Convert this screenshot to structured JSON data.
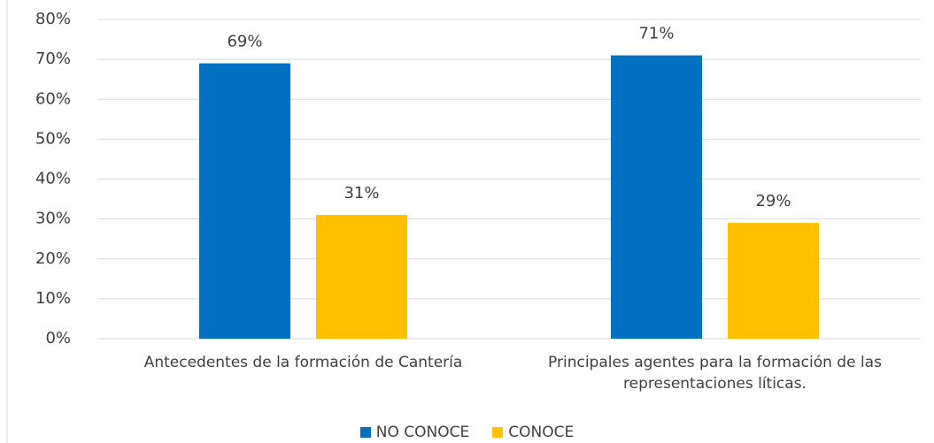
{
  "chart_data": {
    "type": "bar",
    "categories": [
      "Antecedentes de la formación de Cantería",
      "Principales agentes para la formación de las representaciones líticas."
    ],
    "series": [
      {
        "name": "NO CONOCE",
        "color": "#0070c0",
        "values": [
          69,
          71
        ],
        "value_labels": [
          "69%",
          "71%"
        ]
      },
      {
        "name": "CONOCE",
        "color": "#ffc000",
        "values": [
          31,
          29
        ],
        "value_labels": [
          "31%",
          "29%"
        ]
      }
    ],
    "ylim": [
      0,
      80
    ],
    "yticks": [
      {
        "value": 0,
        "label": "0%"
      },
      {
        "value": 10,
        "label": "10%"
      },
      {
        "value": 20,
        "label": "20%"
      },
      {
        "value": 30,
        "label": "30%"
      },
      {
        "value": 40,
        "label": "40%"
      },
      {
        "value": 50,
        "label": "50%"
      },
      {
        "value": 60,
        "label": "60%"
      },
      {
        "value": 70,
        "label": "70%"
      },
      {
        "value": 80,
        "label": "80%"
      }
    ],
    "grid": true,
    "legend": "bottom"
  }
}
